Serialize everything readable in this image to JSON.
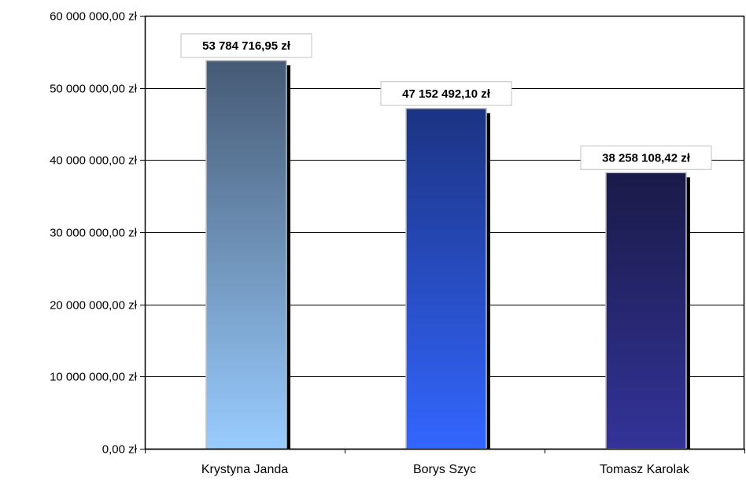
{
  "chart_data": {
    "type": "bar",
    "categories": [
      "Krystyna Janda",
      "Borys Szyc",
      "Tomasz Karolak"
    ],
    "values": [
      53784716.95,
      47152492.1,
      38258108.42
    ],
    "data_labels": [
      "53 784 716,95 zł",
      "47 152 492,10 zł",
      "38 258 108,42 zł"
    ],
    "y_ticks": [
      {
        "value": 0,
        "label": "0,00 zł"
      },
      {
        "value": 10000000,
        "label": "10 000 000,00 zł"
      },
      {
        "value": 20000000,
        "label": "20 000 000,00 zł"
      },
      {
        "value": 30000000,
        "label": "30 000 000,00 zł"
      },
      {
        "value": 40000000,
        "label": "40 000 000,00 zł"
      },
      {
        "value": 50000000,
        "label": "50 000 000,00 zł"
      },
      {
        "value": 60000000,
        "label": "60 000 000,00 zł"
      }
    ],
    "ylim": [
      0,
      60000000
    ],
    "grid": true,
    "legend": "none",
    "title": "",
    "xlabel": "",
    "ylabel": "",
    "bar_gradients": [
      {
        "top": "#465a74",
        "bottom": "#99ccff"
      },
      {
        "top": "#1c3382",
        "bottom": "#3366ff"
      },
      {
        "top": "#1a1a48",
        "bottom": "#333399"
      }
    ]
  }
}
